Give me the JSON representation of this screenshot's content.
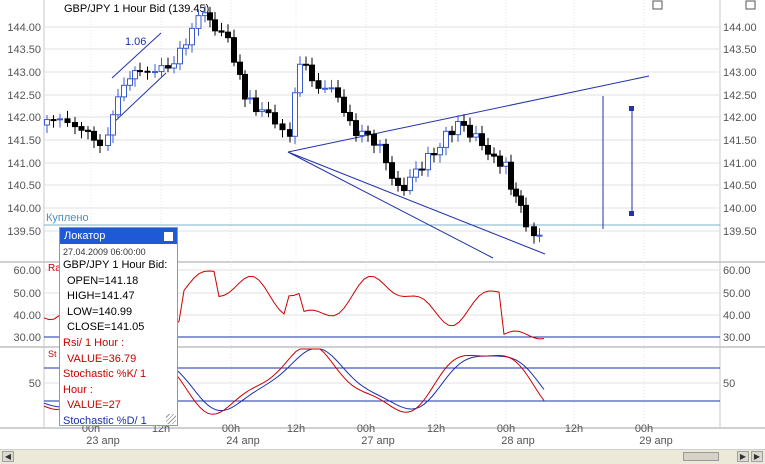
{
  "chart": {
    "title": "GBP/JPY 1 Hour Bid (139.45)",
    "price_axis_left": [
      "144.00",
      "143.50",
      "143.00",
      "142.50",
      "142.00",
      "141.50",
      "141.00",
      "140.50",
      "140.00",
      "139.50"
    ],
    "price_axis_right": [
      "144.00",
      "143.50",
      "143.00",
      "142.50",
      "142.00",
      "141.50",
      "141.00",
      "140.50",
      "140.00",
      "139.50"
    ],
    "fib_label": "1.06",
    "bought_label": "Куплено",
    "rsi_axis": [
      "60.00",
      "50.00",
      "40.00",
      "30.00"
    ],
    "rsi_axis_right": [
      "60.00",
      "50.00",
      "40.00",
      "30.00"
    ],
    "stoch_axis": [
      "50"
    ],
    "stoch_axis_right": [
      "50"
    ],
    "rsi_short_label": "Ra",
    "stoch_short_label": "St",
    "time_axis": [
      {
        "top": "00h",
        "bottom": "23 апр"
      },
      {
        "top": "12h",
        "bottom": ""
      },
      {
        "top": "00h",
        "bottom": "24 апр"
      },
      {
        "top": "12h",
        "bottom": ""
      },
      {
        "top": "00h",
        "bottom": "27 апр"
      },
      {
        "top": "12h",
        "bottom": ""
      },
      {
        "top": "00h",
        "bottom": "28 апр"
      },
      {
        "top": "12h",
        "bottom": ""
      },
      {
        "top": "00h",
        "bottom": "29 апр"
      }
    ]
  },
  "locator": {
    "title": "Локатор",
    "timestamp": "27.04.2009 06:00:00",
    "symbol": "GBP/JPY 1 Hour Bid:",
    "open": "OPEN=141.18",
    "high": "HIGH=141.47",
    "low": "LOW=140.99",
    "close": "CLOSE=141.05",
    "rsi_label": "Rsi/ 1 Hour :",
    "rsi_value": "VALUE=36.79",
    "stoch_k_label": "Stochastic %K/ 1",
    "hour_label": "Hour :",
    "hour_value": "VALUE=27",
    "stoch_d_label": "Stochastic %D/ 1"
  },
  "colors": {
    "candle_up": "#3a5bd0",
    "candle_down": "#000000",
    "rsi_line": "#cc0000",
    "stoch_k": "#cc0000",
    "stoch_d": "#1a2fb0",
    "trend_line": "#2233aa",
    "grid": "#dddddd"
  }
}
